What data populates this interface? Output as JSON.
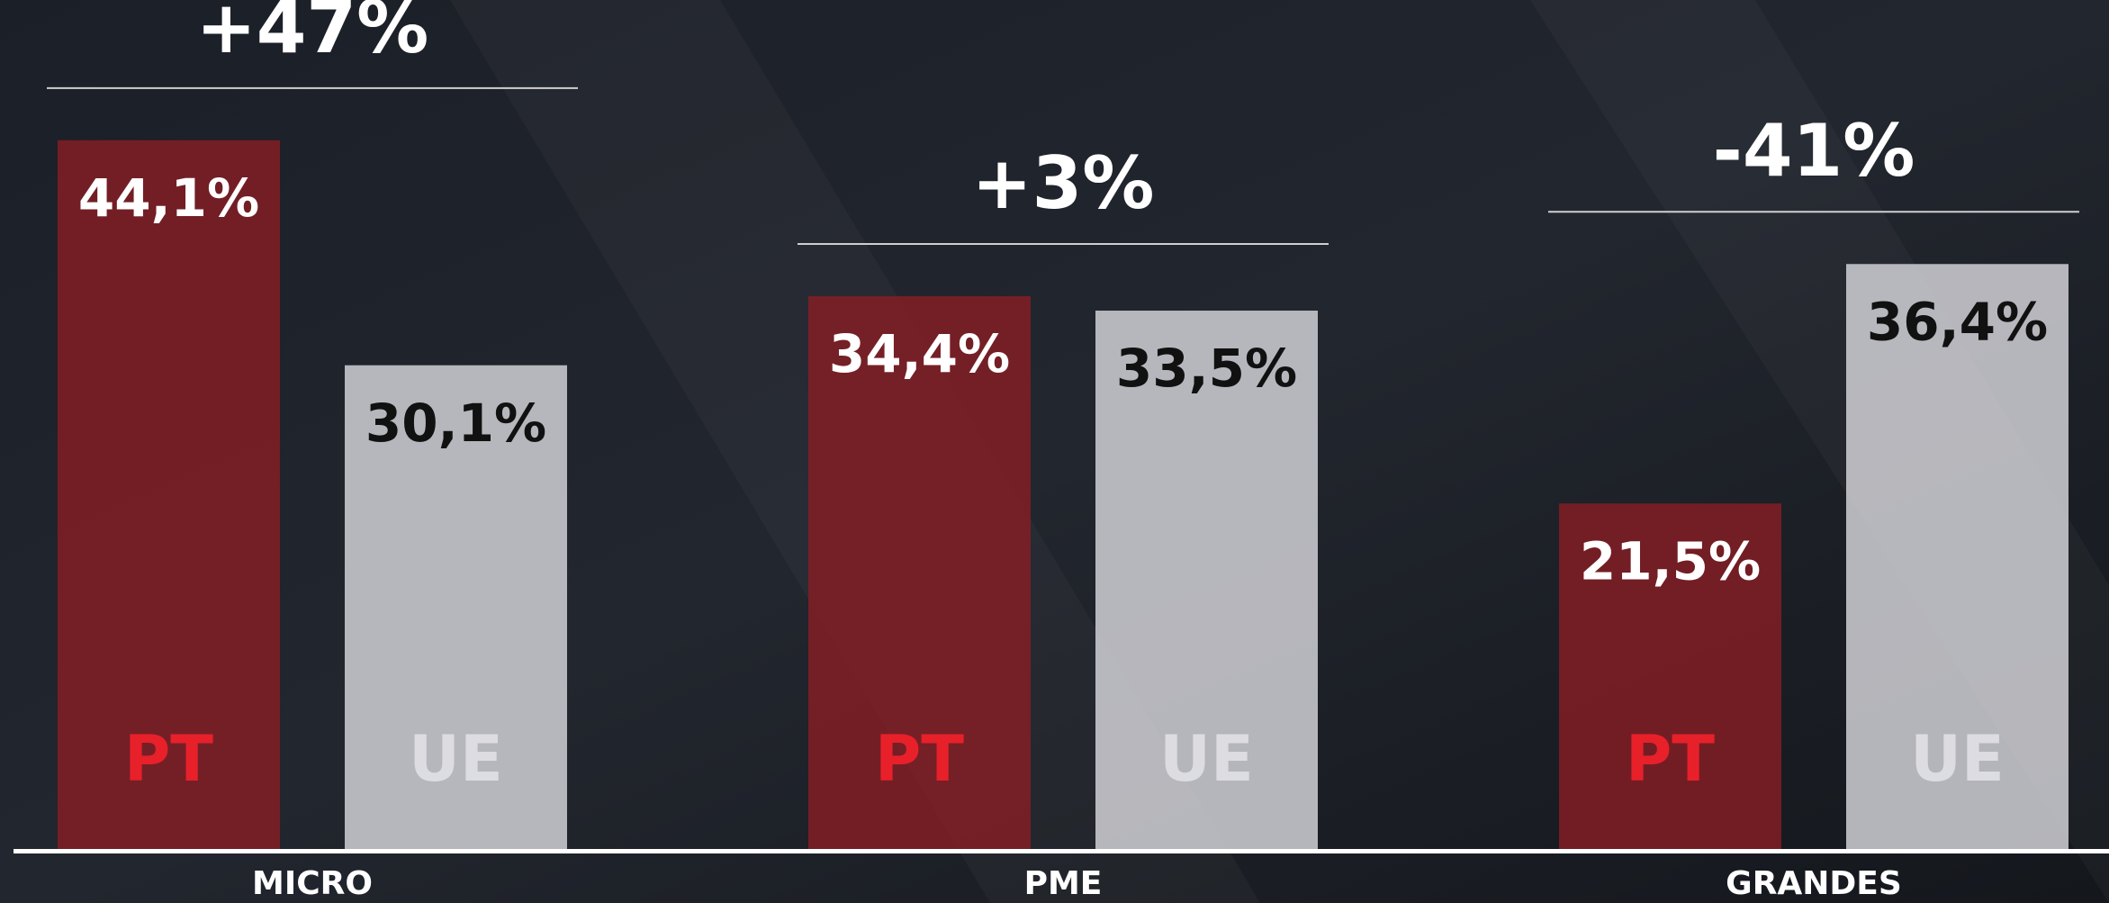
{
  "chart_data": {
    "type": "bar",
    "categories": [
      "MICRO",
      "PME",
      "GRANDES"
    ],
    "series": [
      {
        "name": "PT",
        "color": "#8c1e24",
        "values": [
          44.1,
          34.4,
          21.5
        ],
        "value_labels": [
          "44,1%",
          "34,4%",
          "21,5%"
        ]
      },
      {
        "name": "UE",
        "color": "#dcdce1",
        "values": [
          30.1,
          33.5,
          36.4
        ],
        "value_labels": [
          "30,1%",
          "33,5%",
          "36,4%"
        ]
      }
    ],
    "annotations": [
      "+47%",
      "+3%",
      "-41%"
    ]
  }
}
